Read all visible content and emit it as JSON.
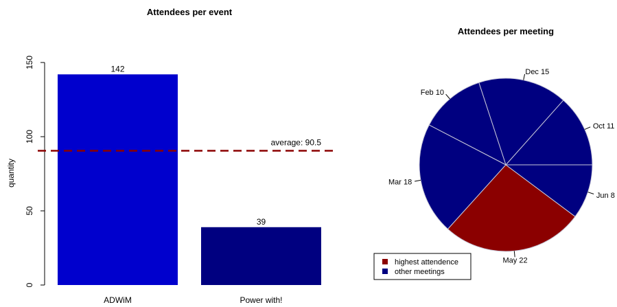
{
  "chart_data": [
    {
      "type": "bar",
      "title": "Attendees per event",
      "xlabel": "",
      "ylabel": "quantity",
      "ylim": [
        0,
        150
      ],
      "yticks": [
        "0",
        "50",
        "100",
        "150"
      ],
      "categories": [
        "ADWiM",
        "Power with!"
      ],
      "values": [
        142,
        39
      ],
      "data_labels": [
        "142",
        "39"
      ],
      "bar_colors": [
        "#0000cd",
        "#000080"
      ],
      "reference_line": {
        "value": 90.5,
        "label": "average: 90.5",
        "color": "#8b0000",
        "style": "dashed"
      },
      "grid": false
    },
    {
      "type": "pie",
      "title": "Attendees per meeting",
      "slices": [
        {
          "label": "Oct 11",
          "value": 12.5,
          "group": "other"
        },
        {
          "label": "Dec 15",
          "value": 15.5,
          "group": "other"
        },
        {
          "label": "Feb 10",
          "value": 11.5,
          "group": "other"
        },
        {
          "label": "Mar 18",
          "value": 19.5,
          "group": "other"
        },
        {
          "label": "May 22",
          "value": 24.7,
          "group": "highest"
        },
        {
          "label": "Jun 8",
          "value": 9.5,
          "group": "other"
        }
      ],
      "colors": {
        "highest": "#8b0000",
        "other": "#000080",
        "border": "#c8c8d8"
      },
      "legend": {
        "position": "bottom-left",
        "items": [
          {
            "label": "highest attendence",
            "color": "#8b0000"
          },
          {
            "label": "other meetings",
            "color": "#000080"
          }
        ]
      }
    }
  ]
}
